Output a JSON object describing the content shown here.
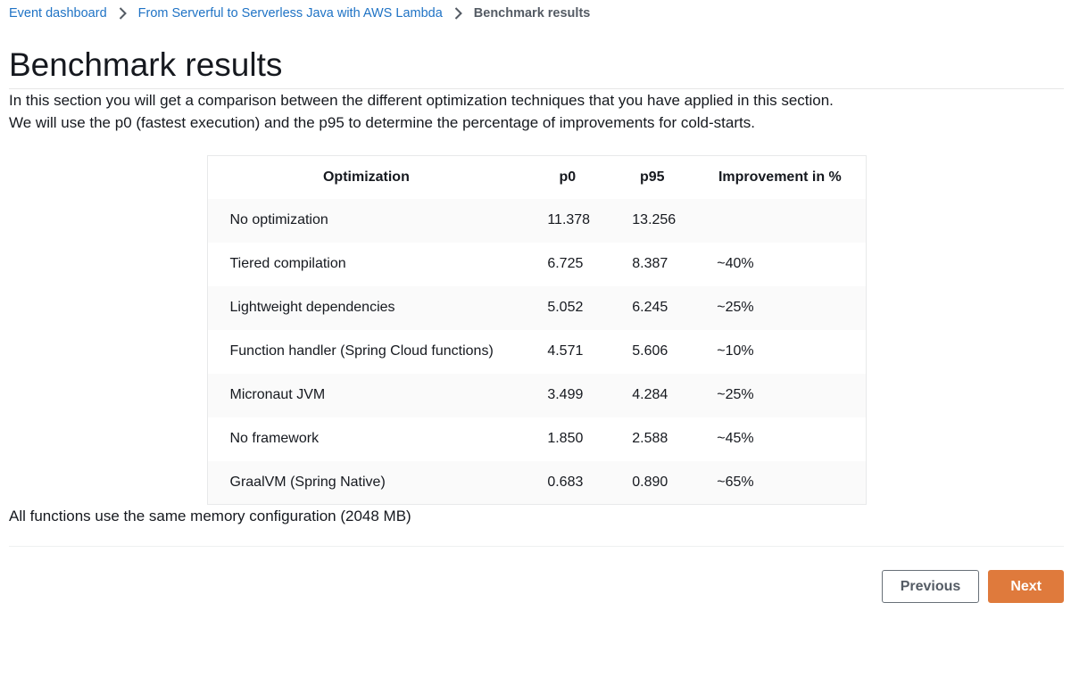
{
  "breadcrumb": {
    "items": [
      {
        "label": "Event dashboard"
      },
      {
        "label": "From Serverful to Serverless Java with AWS Lambda"
      },
      {
        "label": "Benchmark results"
      }
    ]
  },
  "page": {
    "title": "Benchmark results",
    "intro_1": "In this section you will get a comparison between the different optimization techniques that you have applied in this section.",
    "intro_2": "We will use the p0 (fastest execution) and the p95 to determine the percentage of improvements for cold-starts.",
    "footnote": "All functions use the same memory configuration (2048 MB)"
  },
  "table": {
    "columns": [
      "Optimization",
      "p0",
      "p95",
      "Improvement in %"
    ],
    "rows": [
      [
        "No optimization",
        "11.378",
        "13.256",
        ""
      ],
      [
        "Tiered compilation",
        "6.725",
        "8.387",
        "~40%"
      ],
      [
        "Lightweight dependencies",
        "5.052",
        "6.245",
        "~25%"
      ],
      [
        "Function handler (Spring Cloud functions)",
        "4.571",
        "5.606",
        "~10%"
      ],
      [
        "Micronaut JVM",
        "3.499",
        "4.284",
        "~25%"
      ],
      [
        "No framework",
        "1.850",
        "2.588",
        "~45%"
      ],
      [
        "GraalVM (Spring Native)",
        "0.683",
        "0.890",
        "~65%"
      ]
    ]
  },
  "nav": {
    "previous_label": "Previous",
    "next_label": "Next"
  },
  "colors": {
    "link_blue": "#1f73c5",
    "breadcrumb_current": "#545b64",
    "next_button_bg": "#df7a3c",
    "previous_button_border": "#687078",
    "row_alt_bg": "#fafafa",
    "table_border": "#e8e9ea"
  }
}
